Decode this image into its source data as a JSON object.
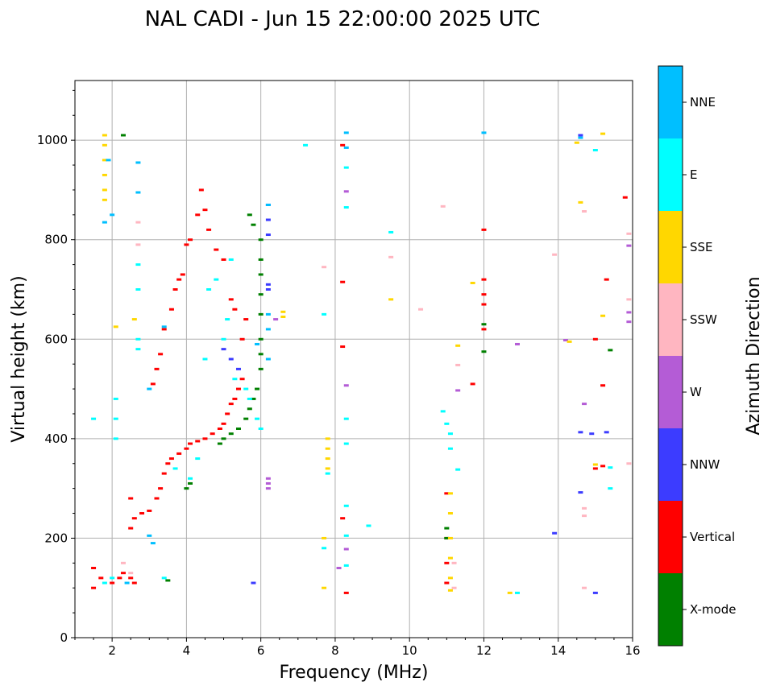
{
  "chart_data": {
    "type": "scatter",
    "title": "NAL CADI - Jun 15 22:00:00 2025 UTC",
    "xlabel": "Frequency (MHz)",
    "ylabel": "Virtual height (km)",
    "xlim": [
      1,
      16
    ],
    "ylim": [
      0,
      1120
    ],
    "xticks": [
      2,
      4,
      6,
      8,
      10,
      12,
      14,
      16
    ],
    "yticks": [
      0,
      200,
      400,
      600,
      800,
      1000
    ],
    "grid": true,
    "colorbar": {
      "label": "Azimuth Direction",
      "categories": [
        {
          "name": "X-mode",
          "color": "#008000"
        },
        {
          "name": "Vertical",
          "color": "#ff0000"
        },
        {
          "name": "NNW",
          "color": "#3c3cff"
        },
        {
          "name": "W",
          "color": "#b45cd6"
        },
        {
          "name": "SSW",
          "color": "#ffb6c1"
        },
        {
          "name": "SSE",
          "color": "#ffd700"
        },
        {
          "name": "E",
          "color": "#00ffff"
        },
        {
          "name": "NNE",
          "color": "#00bfff"
        }
      ]
    },
    "series": [
      {
        "name": "Vertical",
        "points": [
          [
            1.5,
            100
          ],
          [
            1.5,
            140
          ],
          [
            1.7,
            120
          ],
          [
            2.0,
            110
          ],
          [
            2.2,
            120
          ],
          [
            2.3,
            130
          ],
          [
            2.5,
            120
          ],
          [
            2.6,
            110
          ],
          [
            2.5,
            280
          ],
          [
            2.5,
            220
          ],
          [
            2.6,
            240
          ],
          [
            2.8,
            250
          ],
          [
            3.0,
            255
          ],
          [
            3.2,
            280
          ],
          [
            3.3,
            300
          ],
          [
            3.4,
            330
          ],
          [
            3.5,
            350
          ],
          [
            3.6,
            360
          ],
          [
            3.8,
            370
          ],
          [
            4.0,
            380
          ],
          [
            4.1,
            390
          ],
          [
            4.3,
            395
          ],
          [
            4.5,
            400
          ],
          [
            4.7,
            410
          ],
          [
            4.9,
            420
          ],
          [
            5.0,
            430
          ],
          [
            5.1,
            450
          ],
          [
            5.2,
            470
          ],
          [
            5.3,
            480
          ],
          [
            5.4,
            500
          ],
          [
            5.5,
            520
          ],
          [
            5.5,
            600
          ],
          [
            5.6,
            640
          ],
          [
            5.3,
            660
          ],
          [
            5.2,
            680
          ],
          [
            5.0,
            760
          ],
          [
            4.8,
            780
          ],
          [
            4.6,
            820
          ],
          [
            4.5,
            860
          ],
          [
            4.3,
            850
          ],
          [
            4.4,
            900
          ],
          [
            4.1,
            800
          ],
          [
            4.0,
            790
          ],
          [
            3.9,
            730
          ],
          [
            3.8,
            720
          ],
          [
            3.7,
            700
          ],
          [
            3.6,
            660
          ],
          [
            3.4,
            620
          ],
          [
            3.3,
            570
          ],
          [
            3.2,
            540
          ],
          [
            3.1,
            510
          ],
          [
            8.2,
            990
          ],
          [
            8.2,
            715
          ],
          [
            8.2,
            585
          ],
          [
            8.2,
            240
          ],
          [
            8.3,
            90
          ],
          [
            11.0,
            290
          ],
          [
            11.0,
            200
          ],
          [
            11.0,
            150
          ],
          [
            11.0,
            110
          ],
          [
            12.0,
            820
          ],
          [
            12.0,
            720
          ],
          [
            12.0,
            690
          ],
          [
            12.0,
            670
          ],
          [
            12.0,
            620
          ],
          [
            11.7,
            510
          ],
          [
            15.0,
            600
          ],
          [
            15.3,
            720
          ],
          [
            15.2,
            507
          ],
          [
            15.8,
            885
          ],
          [
            15.0,
            340
          ],
          [
            15.2,
            345
          ]
        ]
      },
      {
        "name": "X-mode",
        "points": [
          [
            3.5,
            115
          ],
          [
            4.0,
            300
          ],
          [
            4.1,
            310
          ],
          [
            4.9,
            390
          ],
          [
            5.0,
            400
          ],
          [
            5.2,
            410
          ],
          [
            5.4,
            420
          ],
          [
            5.6,
            440
          ],
          [
            5.7,
            460
          ],
          [
            5.8,
            480
          ],
          [
            5.9,
            500
          ],
          [
            6.0,
            540
          ],
          [
            6.0,
            570
          ],
          [
            6.0,
            600
          ],
          [
            6.0,
            650
          ],
          [
            6.0,
            690
          ],
          [
            6.0,
            730
          ],
          [
            6.0,
            760
          ],
          [
            6.0,
            800
          ],
          [
            5.8,
            830
          ],
          [
            5.7,
            850
          ],
          [
            2.3,
            1010
          ],
          [
            11.0,
            220
          ],
          [
            11.0,
            200
          ],
          [
            12.0,
            630
          ],
          [
            12.0,
            575
          ],
          [
            15.4,
            578
          ]
        ]
      },
      {
        "name": "NNW",
        "points": [
          [
            6.2,
            810
          ],
          [
            6.2,
            870
          ],
          [
            6.2,
            840
          ],
          [
            6.2,
            710
          ],
          [
            6.2,
            700
          ],
          [
            5.0,
            580
          ],
          [
            5.2,
            560
          ],
          [
            5.4,
            540
          ],
          [
            14.6,
            1010
          ],
          [
            14.9,
            410
          ],
          [
            15.3,
            413
          ],
          [
            14.6,
            413
          ],
          [
            14.6,
            292
          ],
          [
            13.9,
            210
          ],
          [
            15.0,
            90
          ],
          [
            5.8,
            110
          ]
        ]
      },
      {
        "name": "W",
        "points": [
          [
            6.2,
            320
          ],
          [
            6.2,
            310
          ],
          [
            6.2,
            300
          ],
          [
            6.4,
            640
          ],
          [
            8.3,
            897
          ],
          [
            8.3,
            507
          ],
          [
            8.3,
            178
          ],
          [
            8.1,
            140
          ],
          [
            11.3,
            497
          ],
          [
            12.9,
            590
          ],
          [
            14.2,
            598
          ],
          [
            14.7,
            470
          ],
          [
            15.9,
            788
          ],
          [
            15.9,
            654
          ],
          [
            15.9,
            635
          ]
        ]
      },
      {
        "name": "SSW",
        "points": [
          [
            2.7,
            835
          ],
          [
            2.7,
            790
          ],
          [
            2.3,
            150
          ],
          [
            2.5,
            130
          ],
          [
            7.7,
            745
          ],
          [
            9.5,
            765
          ],
          [
            10.3,
            660
          ],
          [
            10.9,
            867
          ],
          [
            11.3,
            548
          ],
          [
            11.2,
            150
          ],
          [
            11.2,
            100
          ],
          [
            13.9,
            770
          ],
          [
            14.7,
            857
          ],
          [
            14.7,
            260
          ],
          [
            14.7,
            245
          ],
          [
            14.7,
            100
          ],
          [
            15.9,
            812
          ],
          [
            15.9,
            680
          ],
          [
            15.9,
            350
          ]
        ]
      },
      {
        "name": "SSE",
        "points": [
          [
            1.8,
            1010
          ],
          [
            1.8,
            990
          ],
          [
            1.8,
            960
          ],
          [
            1.8,
            930
          ],
          [
            1.8,
            900
          ],
          [
            1.8,
            880
          ],
          [
            2.1,
            625
          ],
          [
            2.6,
            640
          ],
          [
            6.6,
            655
          ],
          [
            6.6,
            645
          ],
          [
            7.8,
            400
          ],
          [
            7.8,
            380
          ],
          [
            7.8,
            360
          ],
          [
            7.8,
            340
          ],
          [
            7.7,
            200
          ],
          [
            7.7,
            100
          ],
          [
            9.5,
            680
          ],
          [
            11.1,
            290
          ],
          [
            11.1,
            250
          ],
          [
            11.1,
            200
          ],
          [
            11.1,
            160
          ],
          [
            11.1,
            120
          ],
          [
            11.1,
            95
          ],
          [
            11.3,
            587
          ],
          [
            11.7,
            713
          ],
          [
            12.7,
            90
          ],
          [
            14.3,
            595
          ],
          [
            14.6,
            875
          ],
          [
            14.5,
            995
          ],
          [
            15.2,
            1013
          ],
          [
            15.2,
            647
          ],
          [
            15.0,
            348
          ]
        ]
      },
      {
        "name": "E",
        "points": [
          [
            2.1,
            480
          ],
          [
            2.1,
            440
          ],
          [
            2.1,
            400
          ],
          [
            2.7,
            750
          ],
          [
            2.7,
            700
          ],
          [
            2.7,
            600
          ],
          [
            2.7,
            580
          ],
          [
            1.5,
            440
          ],
          [
            1.8,
            110
          ],
          [
            2.0,
            120
          ],
          [
            3.4,
            120
          ],
          [
            3.7,
            340
          ],
          [
            4.1,
            320
          ],
          [
            4.3,
            360
          ],
          [
            4.5,
            560
          ],
          [
            4.6,
            700
          ],
          [
            4.8,
            720
          ],
          [
            5.0,
            600
          ],
          [
            5.1,
            640
          ],
          [
            5.2,
            760
          ],
          [
            5.3,
            520
          ],
          [
            5.6,
            500
          ],
          [
            5.7,
            480
          ],
          [
            5.9,
            440
          ],
          [
            6.0,
            420
          ],
          [
            7.7,
            650
          ],
          [
            7.8,
            330
          ],
          [
            7.7,
            180
          ],
          [
            8.3,
            945
          ],
          [
            8.3,
            865
          ],
          [
            8.3,
            440
          ],
          [
            8.3,
            390
          ],
          [
            8.3,
            265
          ],
          [
            8.3,
            205
          ],
          [
            8.3,
            145
          ],
          [
            8.9,
            225
          ],
          [
            9.5,
            815
          ],
          [
            10.9,
            455
          ],
          [
            11.0,
            430
          ],
          [
            11.1,
            410
          ],
          [
            11.1,
            380
          ],
          [
            11.3,
            338
          ],
          [
            12.9,
            90
          ],
          [
            15.0,
            980
          ],
          [
            15.4,
            300
          ],
          [
            15.4,
            342
          ],
          [
            7.2,
            990
          ]
        ]
      },
      {
        "name": "NNE",
        "points": [
          [
            1.9,
            960
          ],
          [
            1.8,
            835
          ],
          [
            2.0,
            850
          ],
          [
            2.7,
            955
          ],
          [
            2.7,
            895
          ],
          [
            3.4,
            625
          ],
          [
            3.0,
            500
          ],
          [
            3.1,
            190
          ],
          [
            3.0,
            205
          ],
          [
            2.4,
            110
          ],
          [
            6.2,
            870
          ],
          [
            6.2,
            650
          ],
          [
            6.2,
            620
          ],
          [
            6.2,
            560
          ],
          [
            5.9,
            590
          ],
          [
            8.3,
            1015
          ],
          [
            8.3,
            985
          ],
          [
            12.0,
            1015
          ],
          [
            14.6,
            1005
          ]
        ]
      }
    ]
  }
}
